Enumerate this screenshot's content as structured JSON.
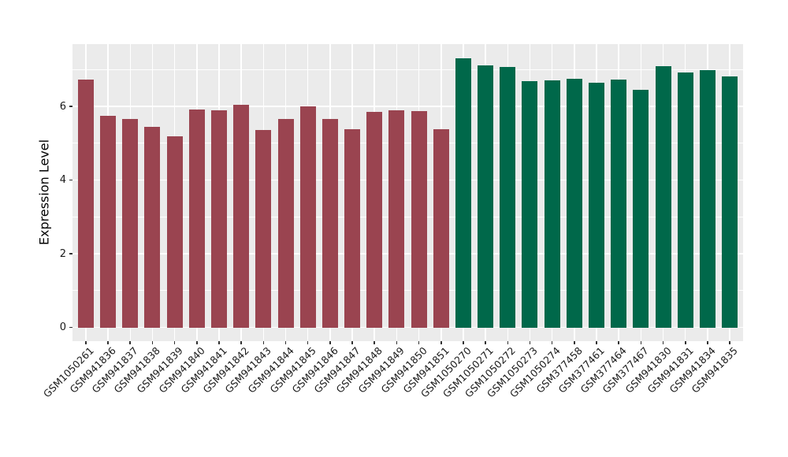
{
  "chart_data": {
    "type": "bar",
    "title": "",
    "xlabel": "",
    "ylabel": "Expression Level",
    "categories": [
      "GSM1050261",
      "GSM941836",
      "GSM941837",
      "GSM941838",
      "GSM941839",
      "GSM941840",
      "GSM941841",
      "GSM941842",
      "GSM941843",
      "GSM941844",
      "GSM941845",
      "GSM941846",
      "GSM941847",
      "GSM941848",
      "GSM941849",
      "GSM941850",
      "GSM941851",
      "GSM1050270",
      "GSM1050271",
      "GSM1050272",
      "GSM1050273",
      "GSM1050274",
      "GSM377458",
      "GSM377461",
      "GSM377464",
      "GSM377467",
      "GSM941830",
      "GSM941831",
      "GSM941834",
      "GSM941835"
    ],
    "values": [
      6.73,
      5.74,
      5.65,
      5.45,
      5.19,
      5.92,
      5.89,
      6.05,
      5.36,
      5.66,
      6.0,
      5.65,
      5.38,
      5.86,
      5.9,
      5.87,
      5.39,
      7.31,
      7.12,
      7.08,
      6.69,
      6.7,
      6.74,
      6.64,
      6.73,
      6.44,
      7.09,
      6.91,
      6.99,
      6.81
    ],
    "bar_groups": [
      "group1",
      "group1",
      "group1",
      "group1",
      "group1",
      "group1",
      "group1",
      "group1",
      "group1",
      "group1",
      "group1",
      "group1",
      "group1",
      "group1",
      "group1",
      "group1",
      "group1",
      "group2",
      "group2",
      "group2",
      "group2",
      "group2",
      "group2",
      "group2",
      "group2",
      "group2",
      "group2",
      "group2",
      "group2",
      "group2"
    ],
    "group_colors": {
      "group1": "#9A4450",
      "group2": "#00684A"
    },
    "yticks": [
      0,
      2,
      4,
      6
    ],
    "yticks_minor": [
      1,
      3,
      5,
      7
    ],
    "ylim": [
      0,
      7.35
    ],
    "panel_range": [
      -0.37,
      7.69
    ],
    "legend": "none",
    "grid": "white major+minor horizontal, white vertical at each category, grey panel",
    "colors": {
      "panel_bg": "#EBEBEB",
      "gridline": "#FFFFFF",
      "axis_text": "#1A1A1A",
      "tick_mark": "#333333",
      "page_bg": "#FFFFFF"
    }
  }
}
